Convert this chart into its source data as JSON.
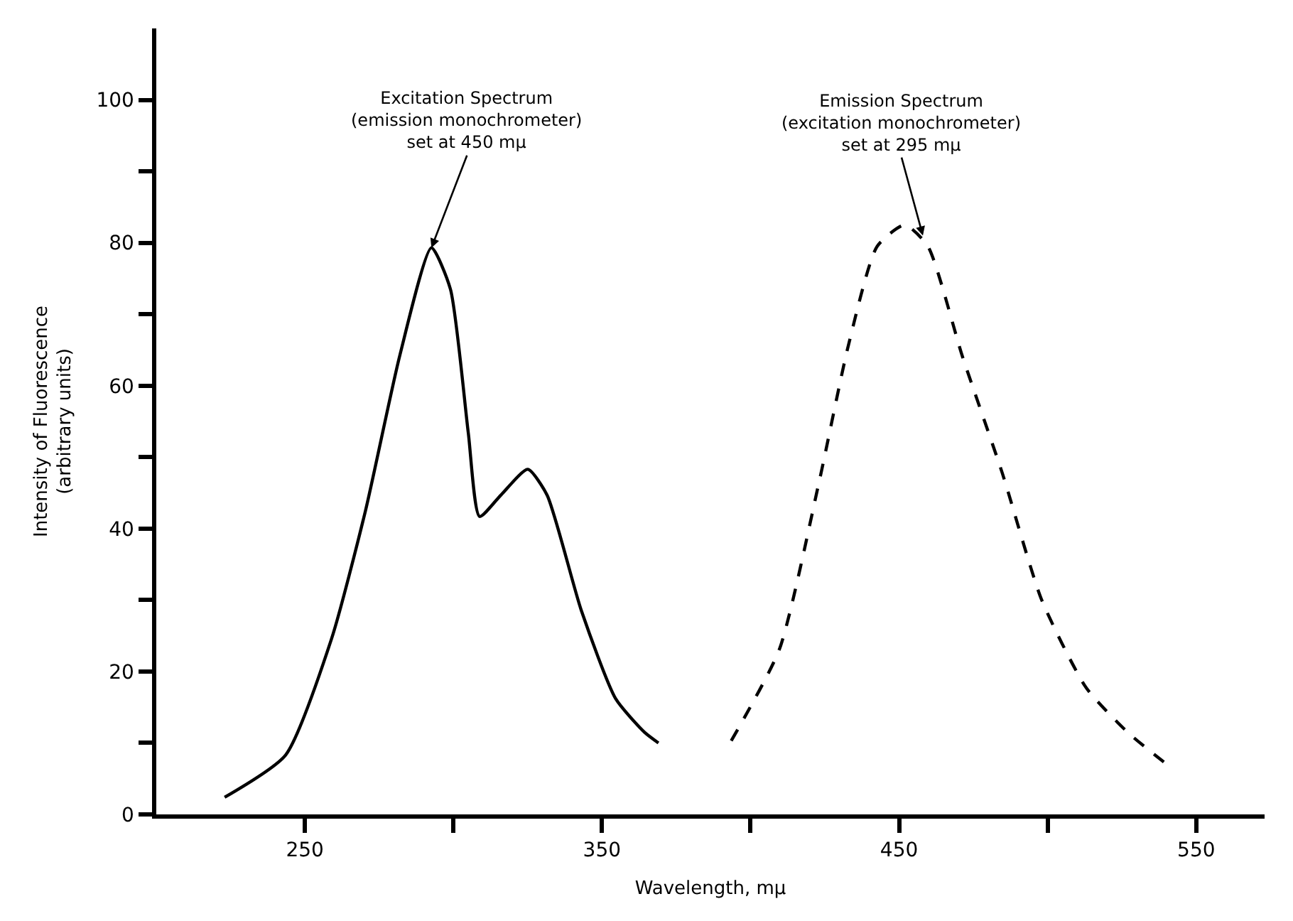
{
  "chart_data": {
    "type": "line",
    "xlabel": "Wavelength, mμ",
    "ylabel": "Intensity of Fluorescence\n(arbitrary units)",
    "xlim": [
      200,
      573
    ],
    "xticks": [
      250,
      {
        "value": 300,
        "label": null
      },
      350,
      {
        "value": 400,
        "label": null
      },
      450,
      {
        "value": 500,
        "label": null
      },
      550
    ],
    "ylim": [
      0,
      110
    ],
    "yticks": [
      0,
      {
        "value": 10,
        "label": null
      },
      20,
      {
        "value": 30,
        "label": null
      },
      40,
      {
        "value": 50,
        "label": null
      },
      60,
      {
        "value": 70,
        "label": null
      },
      80,
      {
        "value": 90,
        "label": null
      },
      100
    ],
    "marker": "none",
    "series": [
      {
        "color": "#000000",
        "line_style": "solid",
        "x": [
          223,
          243.5,
          259,
          270.4,
          282,
          292.6,
          299,
          305,
          308.8,
          316,
          325,
          331.5,
          343,
          354.6,
          364.3,
          369
        ],
        "values": [
          2.4,
          8.3,
          24.6,
          42.5,
          64.3,
          79.3,
          73.5,
          53.4,
          41.7,
          44.7,
          48.3,
          44.7,
          28.6,
          16.2,
          11.5,
          10
        ]
      },
      {
        "color": "#000000",
        "line_style": "dashed",
        "x": [
          393.5,
          409.7,
          423,
          432.9,
          442.6,
          451.9,
          459.7,
          471.3,
          484.7,
          498,
          513,
          526.9,
          540.7
        ],
        "values": [
          10.3,
          23.1,
          46.4,
          65.6,
          79.5,
          82.5,
          79.5,
          64.1,
          47.8,
          30,
          17.7,
          11.5,
          6.8
        ]
      }
    ],
    "annotations": [
      {
        "text": "Excitation Spectrum\n(emission monochrometer)\nset at 450 mμ",
        "x": 292.6,
        "y": 79.3
      },
      {
        "text": "Emission Spectrum\n(excitation monochrometer)\nset at 295 mμ",
        "x": 458,
        "y": 81
      }
    ]
  }
}
